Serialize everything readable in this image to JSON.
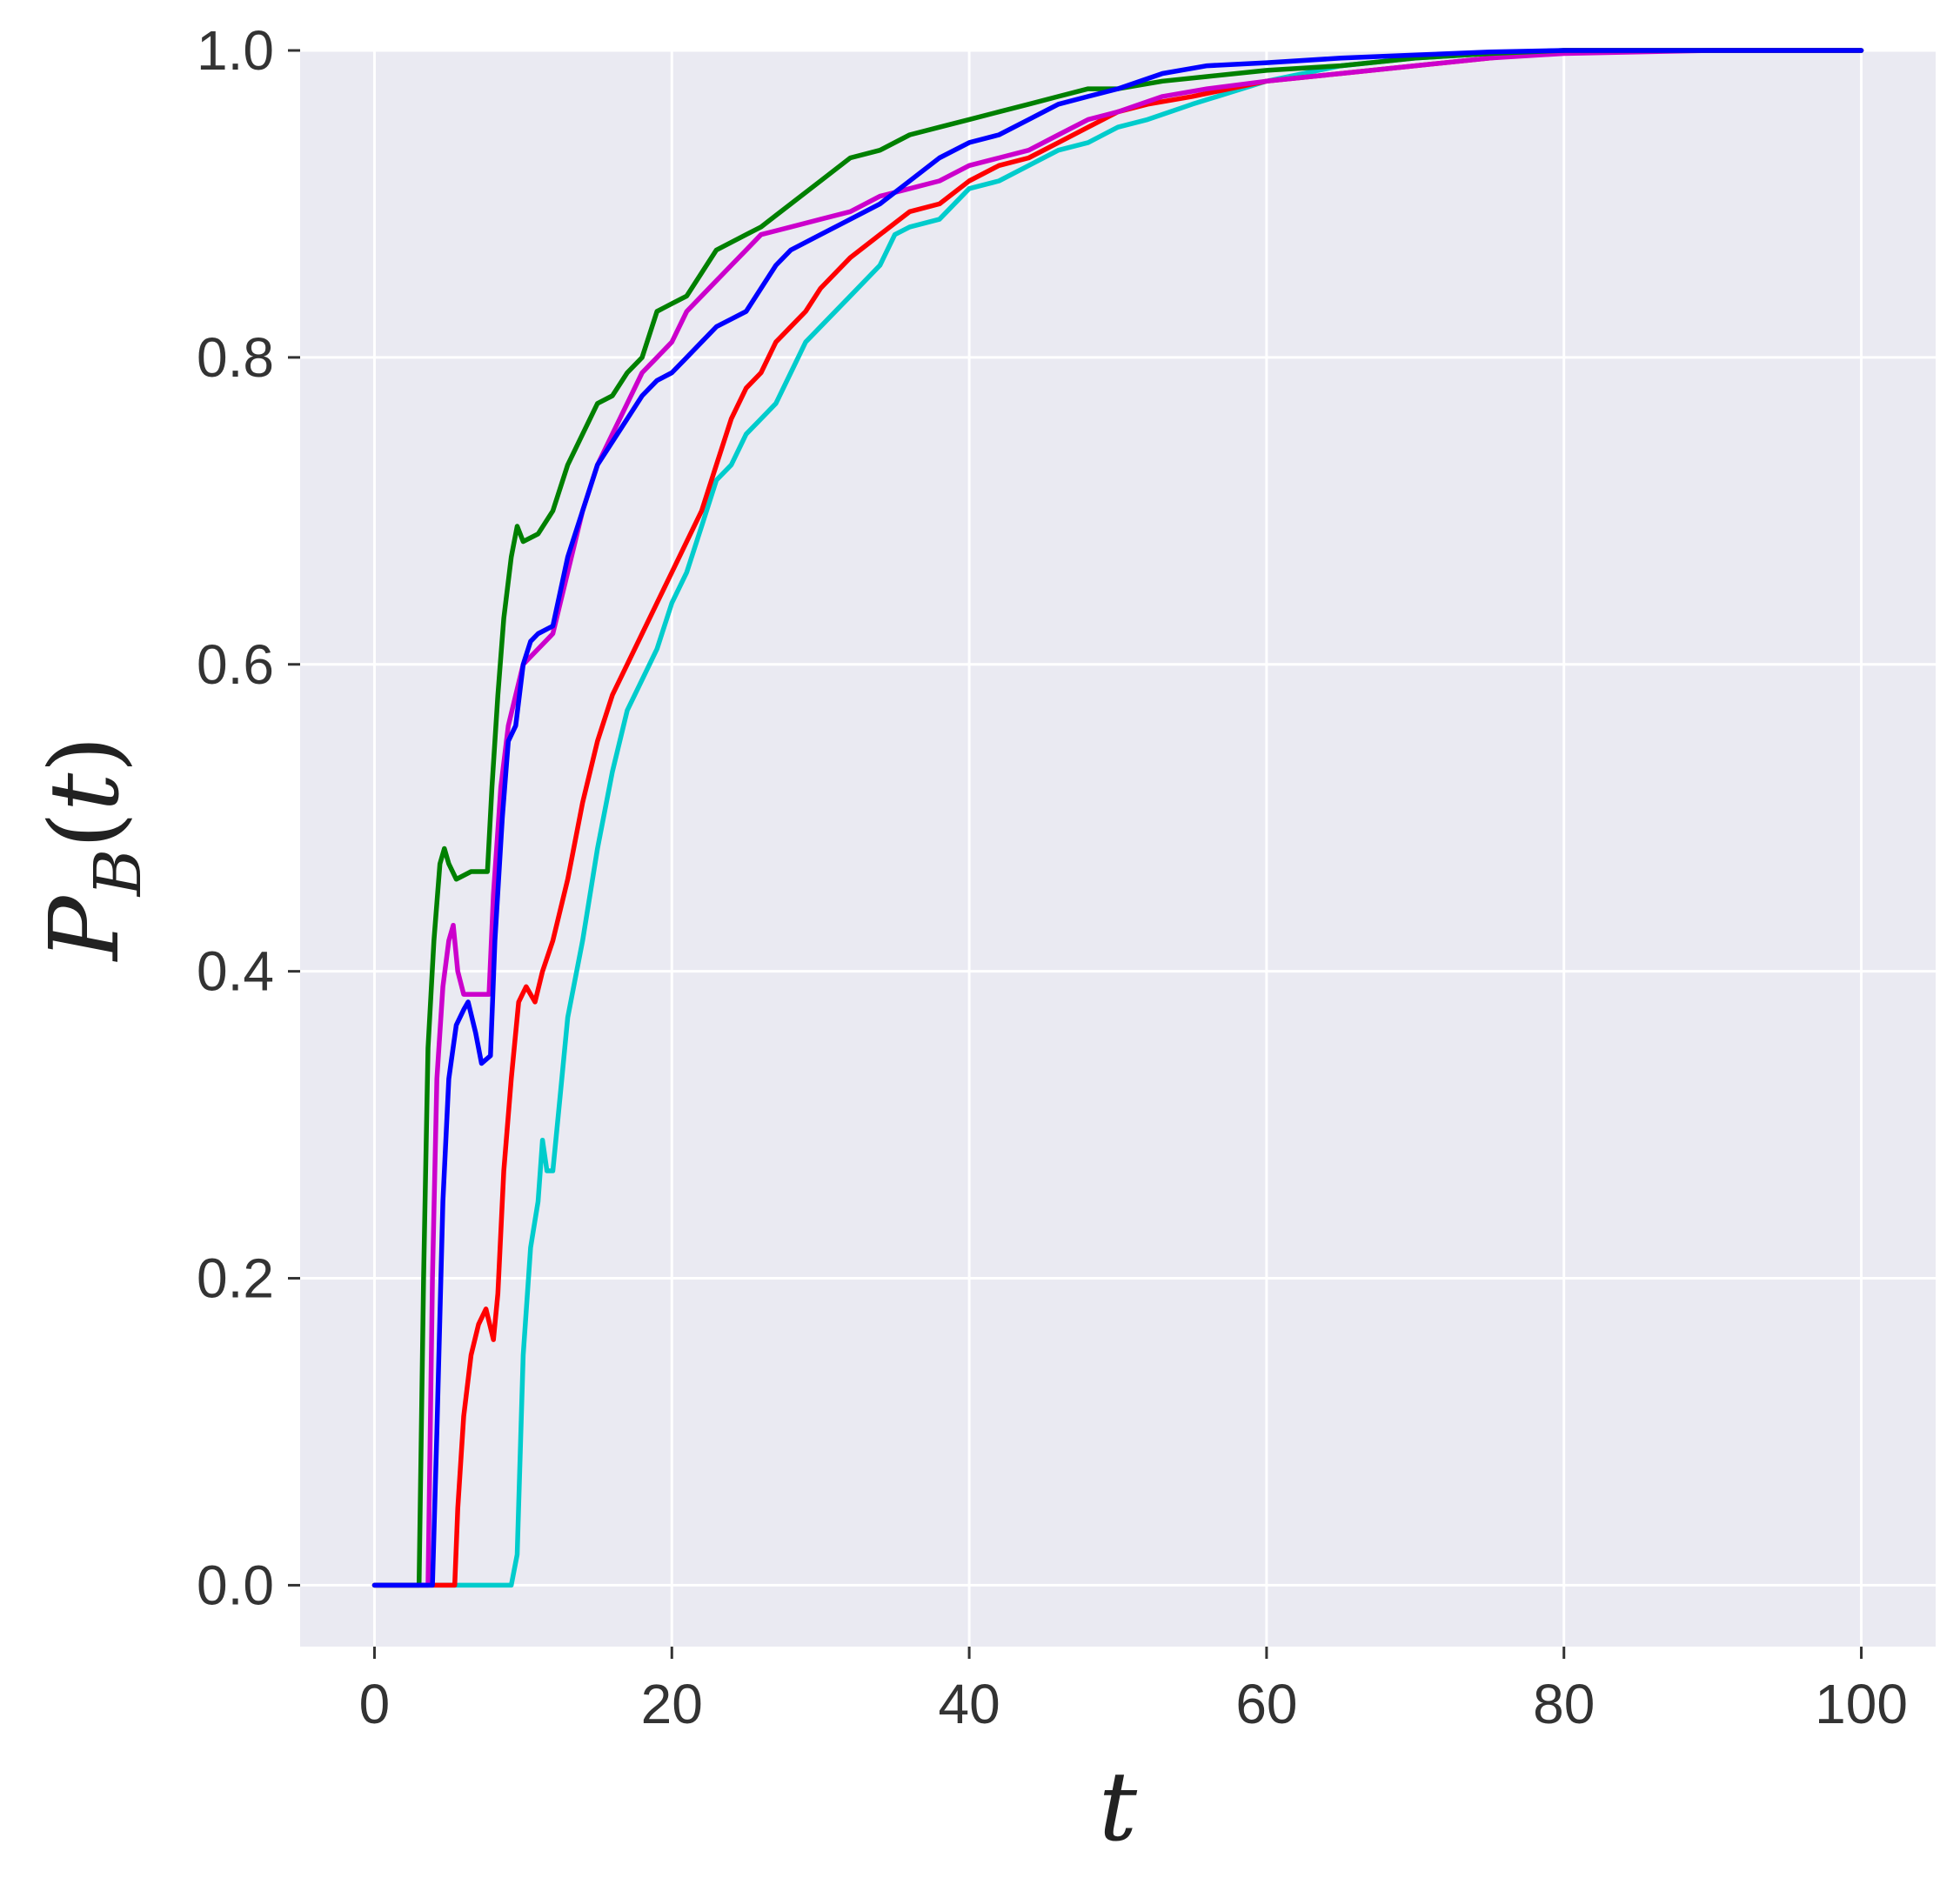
{
  "chart_data": {
    "type": "line",
    "title": "",
    "xlabel": "t",
    "ylabel": "P_B(t)",
    "xlim": [
      -5,
      105
    ],
    "ylim": [
      -0.04,
      1.0
    ],
    "xticks": [
      0,
      20,
      40,
      60,
      80,
      100
    ],
    "yticks": [
      0.0,
      0.2,
      0.4,
      0.6,
      0.8,
      1.0
    ],
    "xtick_labels": [
      "0",
      "20",
      "40",
      "60",
      "80",
      "100"
    ],
    "ytick_labels": [
      "0.0",
      "0.2",
      "0.4",
      "0.6",
      "0.8",
      "1.0"
    ],
    "grid": true,
    "background": "#eaeaf2",
    "series": [
      {
        "color": "#00cccc",
        "points": [
          [
            0,
            0
          ],
          [
            9.2,
            0
          ],
          [
            9.6,
            0.02
          ],
          [
            10,
            0.15
          ],
          [
            10.5,
            0.22
          ],
          [
            11,
            0.25
          ],
          [
            11.3,
            0.29
          ],
          [
            11.6,
            0.27
          ],
          [
            12,
            0.27
          ],
          [
            12.5,
            0.32
          ],
          [
            13,
            0.37
          ],
          [
            14,
            0.42
          ],
          [
            15,
            0.48
          ],
          [
            16,
            0.53
          ],
          [
            17,
            0.57
          ],
          [
            18,
            0.59
          ],
          [
            19,
            0.61
          ],
          [
            20,
            0.64
          ],
          [
            21,
            0.66
          ],
          [
            22,
            0.69
          ],
          [
            23,
            0.72
          ],
          [
            24,
            0.73
          ],
          [
            25,
            0.75
          ],
          [
            26,
            0.76
          ],
          [
            27,
            0.77
          ],
          [
            28,
            0.79
          ],
          [
            29,
            0.81
          ],
          [
            30,
            0.82
          ],
          [
            32,
            0.84
          ],
          [
            34,
            0.86
          ],
          [
            35,
            0.88
          ],
          [
            36,
            0.885
          ],
          [
            38,
            0.89
          ],
          [
            40,
            0.91
          ],
          [
            42,
            0.915
          ],
          [
            44,
            0.925
          ],
          [
            46,
            0.935
          ],
          [
            48,
            0.94
          ],
          [
            50,
            0.95
          ],
          [
            52,
            0.955
          ],
          [
            55,
            0.965
          ],
          [
            60,
            0.98
          ],
          [
            65,
            0.99
          ],
          [
            70,
            0.995
          ],
          [
            75,
            0.998
          ],
          [
            80,
            1.0
          ],
          [
            100,
            1.0
          ]
        ]
      },
      {
        "color": "#ff0000",
        "points": [
          [
            0,
            0
          ],
          [
            5.4,
            0
          ],
          [
            5.6,
            0.05
          ],
          [
            6,
            0.11
          ],
          [
            6.5,
            0.15
          ],
          [
            7,
            0.17
          ],
          [
            7.5,
            0.18
          ],
          [
            8,
            0.16
          ],
          [
            8.3,
            0.19
          ],
          [
            8.7,
            0.27
          ],
          [
            9.2,
            0.33
          ],
          [
            9.7,
            0.38
          ],
          [
            10.2,
            0.39
          ],
          [
            10.8,
            0.38
          ],
          [
            11.3,
            0.4
          ],
          [
            12,
            0.42
          ],
          [
            13,
            0.46
          ],
          [
            14,
            0.51
          ],
          [
            15,
            0.55
          ],
          [
            16,
            0.58
          ],
          [
            17,
            0.6
          ],
          [
            18,
            0.62
          ],
          [
            19,
            0.64
          ],
          [
            20,
            0.66
          ],
          [
            21,
            0.68
          ],
          [
            22,
            0.7
          ],
          [
            23,
            0.73
          ],
          [
            24,
            0.76
          ],
          [
            25,
            0.78
          ],
          [
            26,
            0.79
          ],
          [
            27,
            0.81
          ],
          [
            28,
            0.82
          ],
          [
            29,
            0.83
          ],
          [
            30,
            0.845
          ],
          [
            32,
            0.865
          ],
          [
            34,
            0.88
          ],
          [
            36,
            0.895
          ],
          [
            38,
            0.9
          ],
          [
            40,
            0.915
          ],
          [
            42,
            0.925
          ],
          [
            44,
            0.93
          ],
          [
            46,
            0.94
          ],
          [
            48,
            0.95
          ],
          [
            50,
            0.96
          ],
          [
            52,
            0.965
          ],
          [
            55,
            0.97
          ],
          [
            60,
            0.98
          ],
          [
            65,
            0.985
          ],
          [
            70,
            0.99
          ],
          [
            75,
            0.995
          ],
          [
            80,
            1.0
          ],
          [
            100,
            1.0
          ]
        ]
      },
      {
        "color": "#cc00cc",
        "points": [
          [
            0,
            0
          ],
          [
            3.6,
            0
          ],
          [
            3.9,
            0.2
          ],
          [
            4.2,
            0.33
          ],
          [
            4.6,
            0.39
          ],
          [
            5,
            0.42
          ],
          [
            5.3,
            0.43
          ],
          [
            5.6,
            0.4
          ],
          [
            6,
            0.385
          ],
          [
            7,
            0.385
          ],
          [
            7.7,
            0.385
          ],
          [
            8,
            0.45
          ],
          [
            8.5,
            0.52
          ],
          [
            9,
            0.56
          ],
          [
            9.5,
            0.58
          ],
          [
            10,
            0.6
          ],
          [
            11,
            0.61
          ],
          [
            12,
            0.62
          ],
          [
            13,
            0.66
          ],
          [
            14,
            0.7
          ],
          [
            15,
            0.73
          ],
          [
            16,
            0.75
          ],
          [
            17,
            0.77
          ],
          [
            18,
            0.79
          ],
          [
            19,
            0.8
          ],
          [
            20,
            0.81
          ],
          [
            21,
            0.83
          ],
          [
            22,
            0.84
          ],
          [
            23,
            0.85
          ],
          [
            24,
            0.86
          ],
          [
            25,
            0.87
          ],
          [
            26,
            0.88
          ],
          [
            28,
            0.885
          ],
          [
            30,
            0.89
          ],
          [
            32,
            0.895
          ],
          [
            34,
            0.905
          ],
          [
            36,
            0.91
          ],
          [
            38,
            0.915
          ],
          [
            40,
            0.925
          ],
          [
            42,
            0.93
          ],
          [
            44,
            0.935
          ],
          [
            46,
            0.945
          ],
          [
            48,
            0.955
          ],
          [
            50,
            0.96
          ],
          [
            53,
            0.97
          ],
          [
            56,
            0.975
          ],
          [
            60,
            0.98
          ],
          [
            65,
            0.985
          ],
          [
            70,
            0.99
          ],
          [
            75,
            0.995
          ],
          [
            80,
            0.998
          ],
          [
            90,
            1.0
          ],
          [
            100,
            1.0
          ]
        ]
      },
      {
        "color": "#008000",
        "points": [
          [
            0,
            0
          ],
          [
            3.0,
            0
          ],
          [
            3.3,
            0.2
          ],
          [
            3.6,
            0.35
          ],
          [
            4,
            0.42
          ],
          [
            4.4,
            0.47
          ],
          [
            4.7,
            0.48
          ],
          [
            5,
            0.47
          ],
          [
            5.5,
            0.46
          ],
          [
            6.5,
            0.465
          ],
          [
            7.6,
            0.465
          ],
          [
            7.9,
            0.52
          ],
          [
            8.3,
            0.58
          ],
          [
            8.7,
            0.63
          ],
          [
            9.2,
            0.67
          ],
          [
            9.6,
            0.69
          ],
          [
            10,
            0.68
          ],
          [
            11,
            0.685
          ],
          [
            12,
            0.7
          ],
          [
            13,
            0.73
          ],
          [
            14,
            0.75
          ],
          [
            15,
            0.77
          ],
          [
            16,
            0.775
          ],
          [
            17,
            0.79
          ],
          [
            18,
            0.8
          ],
          [
            19,
            0.83
          ],
          [
            20,
            0.835
          ],
          [
            21,
            0.84
          ],
          [
            22,
            0.855
          ],
          [
            23,
            0.87
          ],
          [
            24,
            0.875
          ],
          [
            25,
            0.88
          ],
          [
            26,
            0.885
          ],
          [
            28,
            0.9
          ],
          [
            30,
            0.915
          ],
          [
            32,
            0.93
          ],
          [
            34,
            0.935
          ],
          [
            36,
            0.945
          ],
          [
            38,
            0.95
          ],
          [
            40,
            0.955
          ],
          [
            42,
            0.96
          ],
          [
            44,
            0.965
          ],
          [
            46,
            0.97
          ],
          [
            48,
            0.975
          ],
          [
            50,
            0.975
          ],
          [
            53,
            0.98
          ],
          [
            56,
            0.983
          ],
          [
            60,
            0.987
          ],
          [
            65,
            0.99
          ],
          [
            70,
            0.995
          ],
          [
            75,
            0.998
          ],
          [
            80,
            1.0
          ],
          [
            100,
            1.0
          ]
        ]
      },
      {
        "color": "#0000ff",
        "points": [
          [
            0,
            0
          ],
          [
            3.9,
            0
          ],
          [
            4.2,
            0.1
          ],
          [
            4.6,
            0.25
          ],
          [
            5,
            0.33
          ],
          [
            5.5,
            0.365
          ],
          [
            6,
            0.375
          ],
          [
            6.3,
            0.38
          ],
          [
            6.8,
            0.36
          ],
          [
            7.2,
            0.34
          ],
          [
            7.8,
            0.345
          ],
          [
            8.1,
            0.42
          ],
          [
            8.6,
            0.5
          ],
          [
            9,
            0.55
          ],
          [
            9.5,
            0.56
          ],
          [
            10,
            0.6
          ],
          [
            10.5,
            0.615
          ],
          [
            11,
            0.62
          ],
          [
            12,
            0.625
          ],
          [
            13,
            0.67
          ],
          [
            14,
            0.7
          ],
          [
            15,
            0.73
          ],
          [
            16,
            0.745
          ],
          [
            17,
            0.76
          ],
          [
            18,
            0.775
          ],
          [
            19,
            0.785
          ],
          [
            20,
            0.79
          ],
          [
            21,
            0.8
          ],
          [
            22,
            0.81
          ],
          [
            23,
            0.82
          ],
          [
            24,
            0.825
          ],
          [
            25,
            0.83
          ],
          [
            26,
            0.845
          ],
          [
            27,
            0.86
          ],
          [
            28,
            0.87
          ],
          [
            29,
            0.875
          ],
          [
            30,
            0.88
          ],
          [
            32,
            0.89
          ],
          [
            34,
            0.9
          ],
          [
            36,
            0.915
          ],
          [
            38,
            0.93
          ],
          [
            40,
            0.94
          ],
          [
            42,
            0.945
          ],
          [
            44,
            0.955
          ],
          [
            46,
            0.965
          ],
          [
            48,
            0.97
          ],
          [
            50,
            0.975
          ],
          [
            53,
            0.985
          ],
          [
            56,
            0.99
          ],
          [
            60,
            0.992
          ],
          [
            65,
            0.995
          ],
          [
            70,
            0.997
          ],
          [
            75,
            0.999
          ],
          [
            80,
            1.0
          ],
          [
            100,
            1.0
          ]
        ]
      }
    ]
  }
}
